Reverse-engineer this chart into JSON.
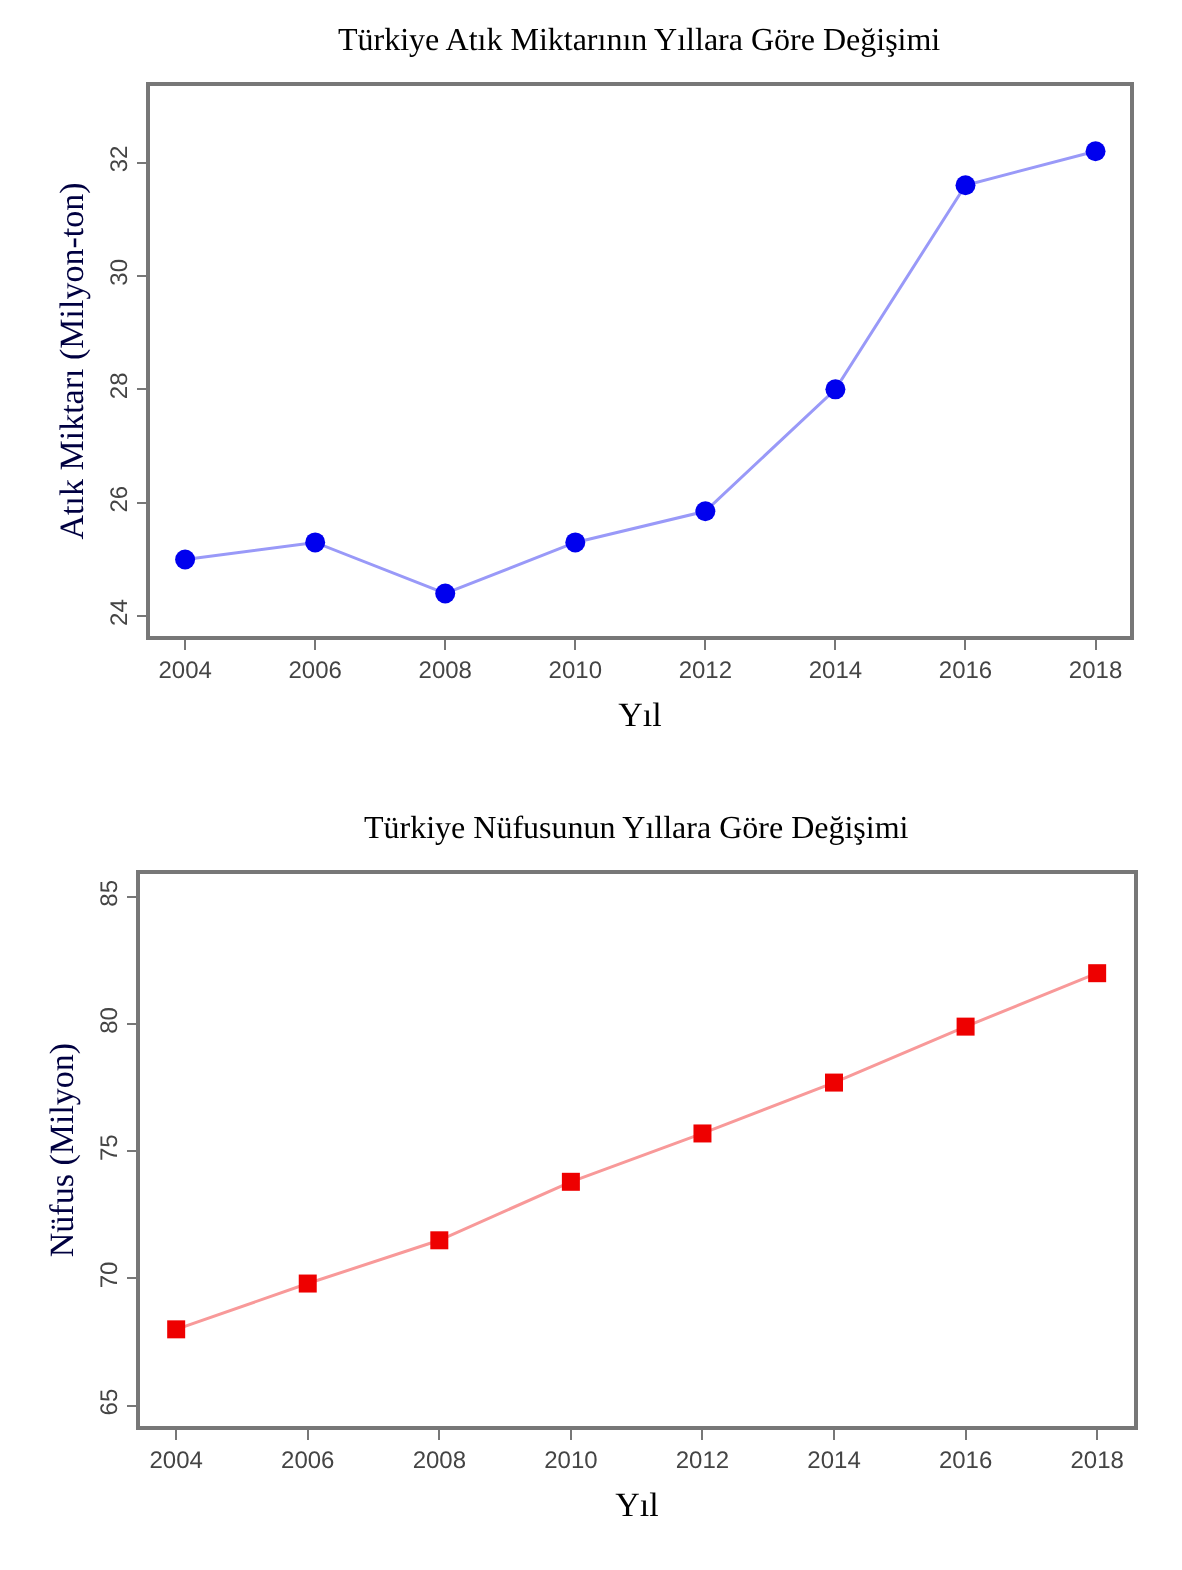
{
  "chart_data": [
    {
      "type": "line",
      "title": "Türkiye Atık Miktarının Yıllara Göre Değişimi",
      "xlabel": "Yıl",
      "ylabel": "Atık Miktarı (Milyon-ton)",
      "x": [
        2004,
        2006,
        2008,
        2010,
        2012,
        2014,
        2016,
        2018
      ],
      "series": [
        {
          "color": "#0000ee",
          "values": [
            25.0,
            25.3,
            24.4,
            25.3,
            25.85,
            28.0,
            31.6,
            32.2
          ]
        }
      ],
      "xlim": [
        2003.46,
        2018.53
      ],
      "xticks": [
        2004,
        2006,
        2008,
        2010,
        2012,
        2014,
        2016,
        2018
      ],
      "ylim": [
        23.65,
        33.35
      ],
      "yticks": [
        24,
        26,
        28,
        30,
        32
      ],
      "marker": "circle"
    },
    {
      "type": "line",
      "title": "Türkiye Nüfusunun Yıllara Göre Değişimi",
      "xlabel": "Yıl",
      "ylabel": "Nüfus (Milyon)",
      "x": [
        2004,
        2006,
        2008,
        2010,
        2012,
        2014,
        2016,
        2018
      ],
      "series": [
        {
          "color": "#ee0000",
          "values": [
            68.0,
            69.8,
            71.5,
            73.8,
            75.7,
            77.7,
            79.9,
            82.0
          ]
        }
      ],
      "xlim": [
        2003.45,
        2018.56
      ],
      "xticks": [
        2004,
        2006,
        2008,
        2010,
        2012,
        2014,
        2016,
        2018
      ],
      "ylim": [
        64.2,
        85.9
      ],
      "yticks": [
        65,
        70,
        75,
        80,
        85
      ],
      "marker": "square"
    }
  ]
}
